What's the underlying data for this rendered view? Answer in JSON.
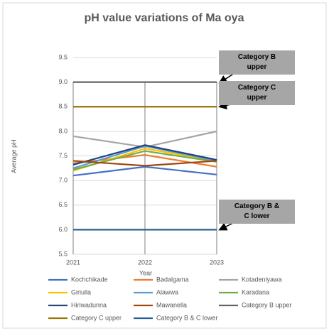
{
  "chart_data": {
    "type": "line",
    "title": "pH value variations of Ma oya",
    "x_label": "Year",
    "y_label": "Average pH",
    "categories": [
      "2021",
      "2022",
      "2023"
    ],
    "ylim": [
      5.5,
      9.5
    ],
    "yticks": [
      5.5,
      {
        "value": 6,
        "label": "6.0"
      },
      6.5,
      {
        "value": 7,
        "label": "7.0"
      },
      7.5,
      {
        "value": 8,
        "label": "8.0"
      },
      8.5,
      {
        "value": 9,
        "label": "9.0"
      },
      9.5
    ],
    "grid": true,
    "legend": "bottom",
    "series": [
      {
        "name": "Kochchikade",
        "color": "#4472c4",
        "values": [
          7.1,
          7.28,
          7.12
        ]
      },
      {
        "name": "Badalgama",
        "color": "#ed7d31",
        "values": [
          7.35,
          7.52,
          7.28
        ]
      },
      {
        "name": "Kotadeniyawa",
        "color": "#a5a5a5",
        "values": [
          7.9,
          7.68,
          8.0
        ]
      },
      {
        "name": "Giriulla",
        "color": "#ffc000",
        "values": [
          7.2,
          7.65,
          7.4
        ]
      },
      {
        "name": "Alawwa",
        "color": "#5b9bd5",
        "values": [
          7.25,
          7.7,
          7.4
        ]
      },
      {
        "name": "Karadana",
        "color": "#70ad47",
        "values": [
          7.22,
          7.6,
          7.38
        ]
      },
      {
        "name": "Hiriwadunna",
        "color": "#264478",
        "values": [
          7.32,
          7.72,
          7.42
        ]
      },
      {
        "name": "Mawanella",
        "color": "#9e480e",
        "values": [
          7.4,
          7.3,
          7.4
        ]
      },
      {
        "name": "Category B upper",
        "color": "#636363",
        "values": [
          9,
          9,
          9
        ]
      },
      {
        "name": "Category C upper",
        "color": "#997300",
        "values": [
          8.5,
          8.5,
          8.5
        ]
      },
      {
        "name": "Category B & C lower",
        "color": "#255e91",
        "values": [
          6,
          6,
          6
        ]
      }
    ],
    "annotations": [
      "Category B upper",
      "Category C upper",
      "Category B & C lower"
    ]
  }
}
